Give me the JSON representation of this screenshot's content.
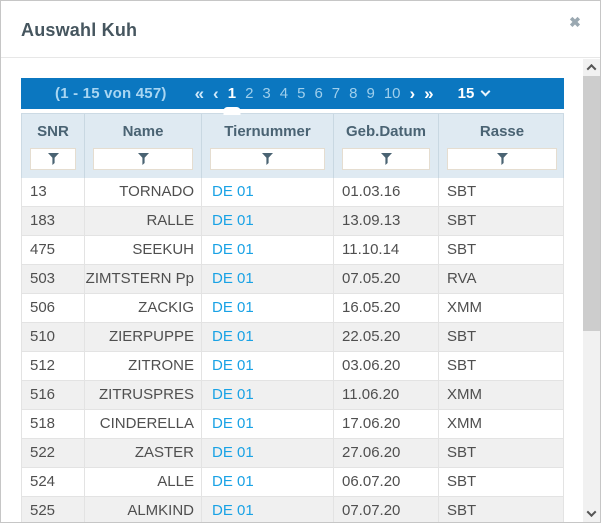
{
  "dialog": {
    "title": "Auswahl Kuh",
    "close_glyph": "✖"
  },
  "pagination": {
    "info": "(1 - 15 von 457)",
    "first_glyph": "«",
    "prev_glyph": "‹",
    "pages": [
      "1",
      "2",
      "3",
      "4",
      "5",
      "6",
      "7",
      "8",
      "9",
      "10"
    ],
    "active_page": "1",
    "next_glyph": "›",
    "last_glyph": "»",
    "page_size": "15"
  },
  "table": {
    "columns": [
      {
        "key": "snr",
        "label": "SNR"
      },
      {
        "key": "name",
        "label": "Name"
      },
      {
        "key": "tiernummer",
        "label": "Tiernummer"
      },
      {
        "key": "geb_datum",
        "label": "Geb.Datum"
      },
      {
        "key": "rasse",
        "label": "Rasse"
      }
    ],
    "rows": [
      {
        "snr": "13",
        "name": "TORNADO",
        "tiernummer": "DE 01",
        "geb_datum": "01.03.16",
        "rasse": "SBT"
      },
      {
        "snr": "183",
        "name": "RALLE",
        "tiernummer": "DE 01",
        "geb_datum": "13.09.13",
        "rasse": "SBT"
      },
      {
        "snr": "475",
        "name": "SEEKUH",
        "tiernummer": "DE 01",
        "geb_datum": "11.10.14",
        "rasse": "SBT"
      },
      {
        "snr": "503",
        "name": "ZIMTSTERN Pp",
        "tiernummer": "DE 01",
        "geb_datum": "07.05.20",
        "rasse": "RVA"
      },
      {
        "snr": "506",
        "name": "ZACKIG",
        "tiernummer": "DE 01",
        "geb_datum": "16.05.20",
        "rasse": "XMM"
      },
      {
        "snr": "510",
        "name": "ZIERPUPPE",
        "tiernummer": "DE 01",
        "geb_datum": "22.05.20",
        "rasse": "SBT"
      },
      {
        "snr": "512",
        "name": "ZITRONE",
        "tiernummer": "DE 01",
        "geb_datum": "03.06.20",
        "rasse": "SBT"
      },
      {
        "snr": "516",
        "name": "ZITRUSPRES",
        "tiernummer": "DE 01",
        "geb_datum": "11.06.20",
        "rasse": "XMM"
      },
      {
        "snr": "518",
        "name": "CINDERELLA",
        "tiernummer": "DE 01",
        "geb_datum": "17.06.20",
        "rasse": "XMM"
      },
      {
        "snr": "522",
        "name": "ZASTER",
        "tiernummer": "DE 01",
        "geb_datum": "27.06.20",
        "rasse": "SBT"
      },
      {
        "snr": "524",
        "name": "ALLE",
        "tiernummer": "DE 01",
        "geb_datum": "06.07.20",
        "rasse": "SBT"
      },
      {
        "snr": "525",
        "name": "ALMKIND",
        "tiernummer": "DE 01",
        "geb_datum": "07.07.20",
        "rasse": "SBT"
      }
    ]
  },
  "colors": {
    "pagination_bar": "#0b77c0",
    "pagination_info_text": "#a9d6f2",
    "page_inactive": "#9fcfec",
    "header_bg": "#dfeaf2",
    "header_text": "#4a6373",
    "link_blue": "#19a2e5",
    "row_alt_bg": "#f0f0f0",
    "row_border": "#e3e3e3",
    "title_text": "#46565f",
    "scroll_thumb": "#cdcdcd",
    "scroll_track": "#f1f1f1"
  },
  "icons": {
    "close": "close-icon",
    "filter": "funnel-icon",
    "scroll_up": "chevron-up-icon",
    "scroll_down": "chevron-down-icon",
    "page_size_dropdown": "chevron-down-icon"
  }
}
